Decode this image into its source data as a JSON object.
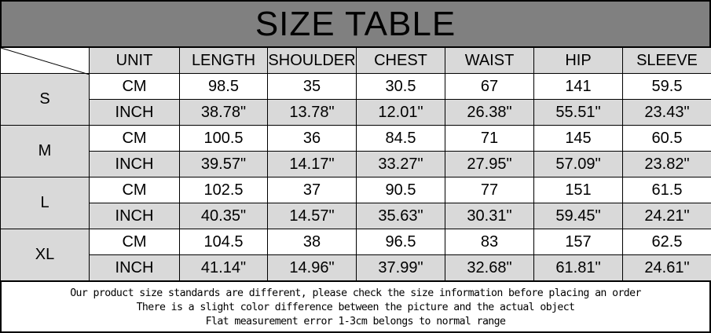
{
  "title": "SIZE TABLE",
  "headers": [
    "UNIT",
    "LENGTH",
    "SHOULDER",
    "CHEST",
    "WAIST",
    "HIP",
    "SLEEVE"
  ],
  "sizes": [
    {
      "label": "S",
      "cm": [
        "CM",
        "98.5",
        "35",
        "30.5",
        "67",
        "141",
        "59.5"
      ],
      "inch": [
        "INCH",
        "38.78\"",
        "13.78\"",
        "12.01\"",
        "26.38\"",
        "55.51\"",
        "23.43\""
      ]
    },
    {
      "label": "M",
      "cm": [
        "CM",
        "100.5",
        "36",
        "84.5",
        "71",
        "145",
        "60.5"
      ],
      "inch": [
        "INCH",
        "39.57\"",
        "14.17\"",
        "33.27\"",
        "27.95\"",
        "57.09\"",
        "23.82\""
      ]
    },
    {
      "label": "L",
      "cm": [
        "CM",
        "102.5",
        "37",
        "90.5",
        "77",
        "151",
        "61.5"
      ],
      "inch": [
        "INCH",
        "40.35\"",
        "14.57\"",
        "35.63\"",
        "30.31\"",
        "59.45\"",
        "24.21\""
      ]
    },
    {
      "label": "XL",
      "cm": [
        "CM",
        "104.5",
        "38",
        "96.5",
        "83",
        "157",
        "62.5"
      ],
      "inch": [
        "INCH",
        "41.14\"",
        "14.96\"",
        "37.99\"",
        "32.68\"",
        "61.81\"",
        "24.61\""
      ]
    }
  ],
  "notes": [
    "Our product size standards are different, please check the size information before placing an order",
    "There is a slight color difference between the picture and the actual object",
    "Flat measurement error 1-3cm belongs to normal range"
  ],
  "colors": {
    "title_bg": "#808080",
    "cell_gray": "#d9d9d9",
    "cell_white": "#ffffff"
  }
}
